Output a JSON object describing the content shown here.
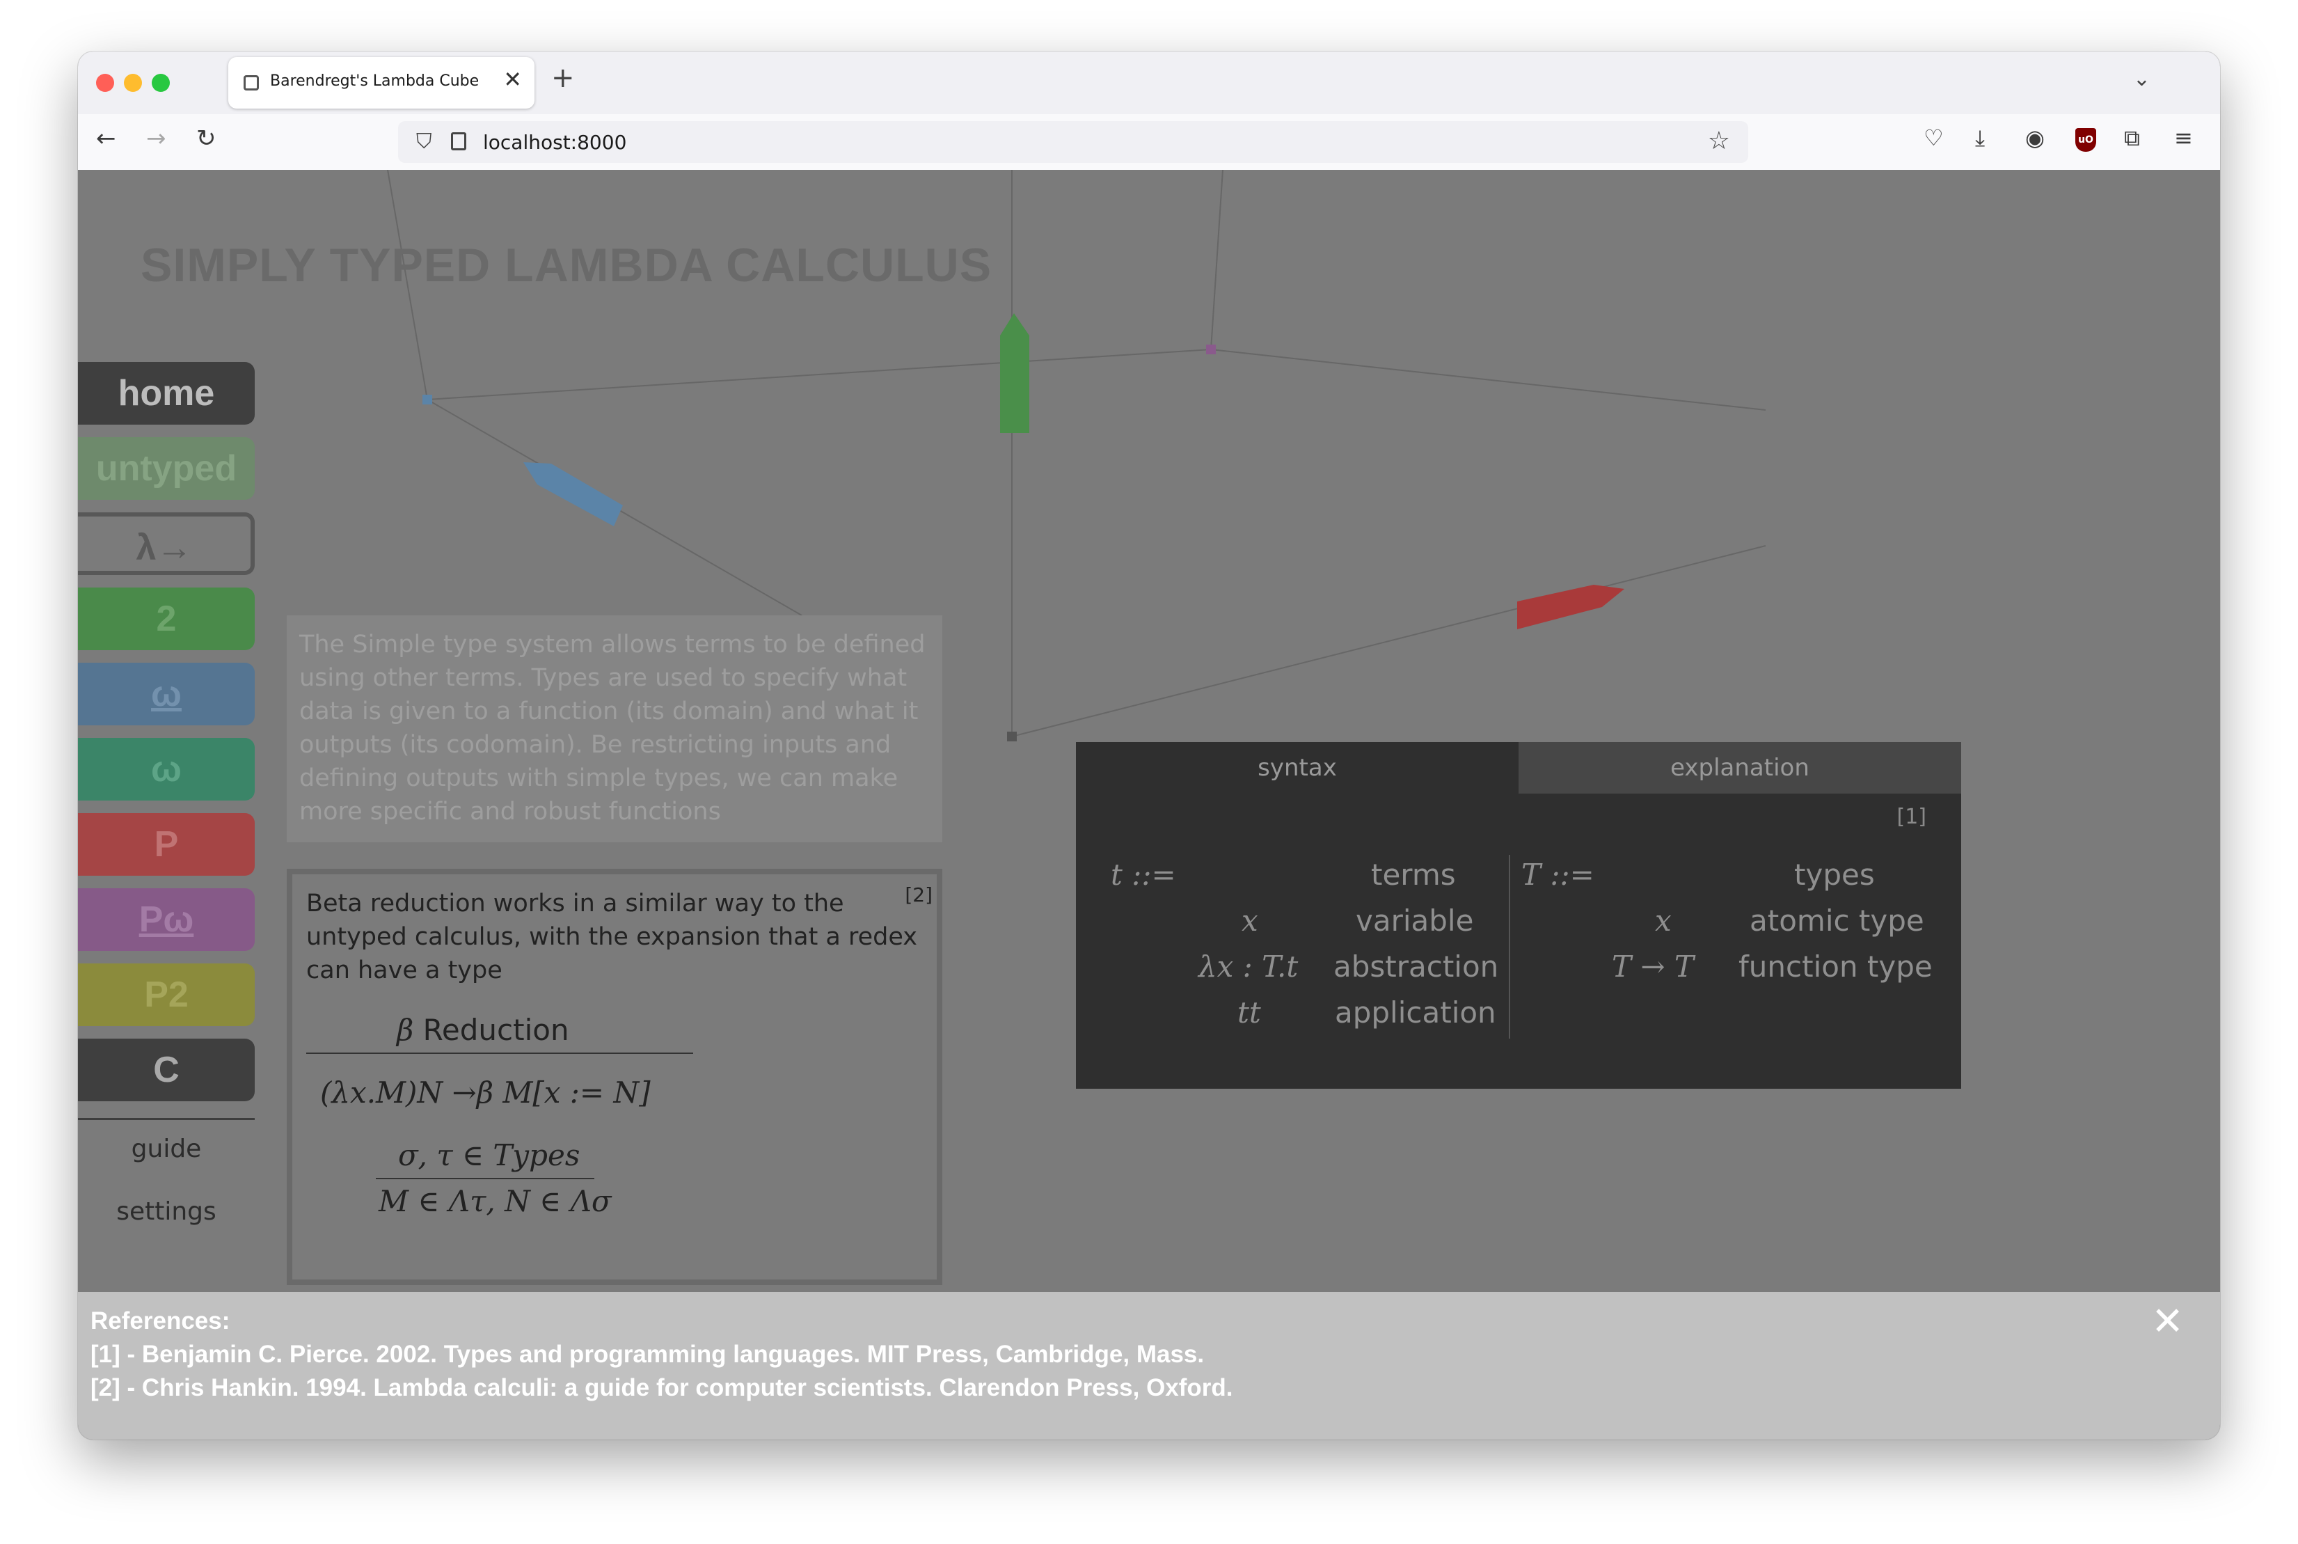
{
  "browser": {
    "tab_title": "Barendregt's Lambda Cube",
    "url": "localhost:8000",
    "new_tab_symbol": "+",
    "close_symbol": "✕"
  },
  "page": {
    "title": "SIMPLY TYPED LAMBDA CALCULUS"
  },
  "nav": {
    "home": "home",
    "untyped": "untyped",
    "stlc": "λ→",
    "two": "2",
    "omega_ul": "ω",
    "omega": "ω",
    "p": "P",
    "pomega": "Pω",
    "p2": "P2",
    "c": "C",
    "guide": "guide",
    "settings": "settings"
  },
  "intro": {
    "text": "The Simple type system allows terms to be defined using other terms. Types are used to specify what data is given to a function (its domain) and what it outputs (its codomain). Be restricting inputs and defining outputs with simple types, we can make more specific and robust functions"
  },
  "beta": {
    "text": "Beta reduction works in a similar way to the untyped calculus, with the expansion that a redex can have a type",
    "cite": "[2]",
    "heading_symbol": "β",
    "heading_text": "Reduction",
    "rule": "(λx.M)N →β M[x := N]",
    "premise": "σ, τ ∈ Types",
    "conclusion": "M ∈ Λτ, N ∈ Λσ"
  },
  "syntax_panel": {
    "tabs": [
      "syntax",
      "explanation"
    ],
    "cite": "[1]",
    "terms": {
      "head": "t ::=",
      "head_label": "terms",
      "rows": [
        {
          "expr": "x",
          "label": "variable"
        },
        {
          "expr": "λx : T.t",
          "label": "abstraction"
        },
        {
          "expr": "tt",
          "label": "application"
        }
      ]
    },
    "types": {
      "head": "T ::=",
      "head_label": "types",
      "rows": [
        {
          "expr": "x",
          "label": "atomic type"
        },
        {
          "expr": "T → T",
          "label": "function type"
        }
      ]
    }
  },
  "navigation_arrows": {
    "prev": "‹",
    "next": "›"
  },
  "references": {
    "heading": "References:",
    "items": [
      "[1] - Benjamin C. Pierce. 2002. Types and programming languages. MIT Press, Cambridge, Mass.",
      "[2] - Chris Hankin. 1994. Lambda calculi: a guide for computer scientists. Clarendon Press, Oxford."
    ],
    "close": "✕"
  },
  "colors": {
    "overlay": "#7b7b7b",
    "blue_arrow": "#5b84a8",
    "green_arrow": "#4a8f4a",
    "red_arrow": "#a93a3a"
  }
}
